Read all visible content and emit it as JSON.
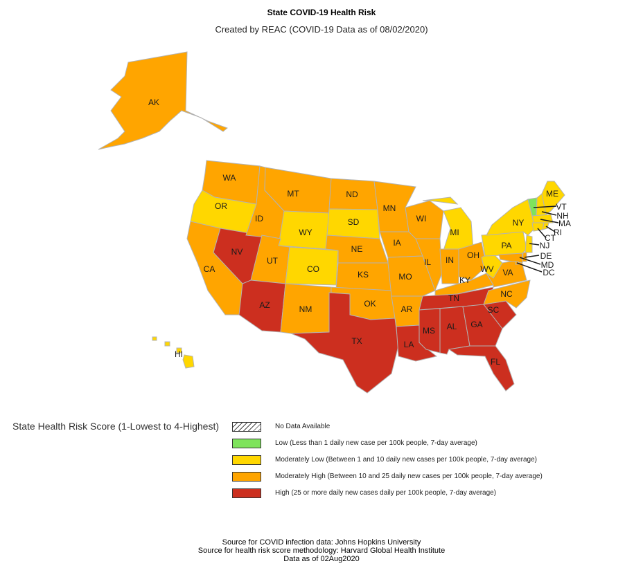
{
  "title": "State COVID-19 Health Risk",
  "subtitle": "Created by REAC (COVID-19 Data as of 08/02/2020)",
  "colors": {
    "low": "#7ee35c",
    "moderately_low": "#ffd700",
    "moderately_high": "#ffa500",
    "high": "#cc2f1f",
    "no_data": "hatched"
  },
  "legend": {
    "title": "State Health Risk Score (1-Lowest to 4-Highest)",
    "items": [
      {
        "label": "No Data Available",
        "color": "hatch"
      },
      {
        "label": "Low (Less than 1 daily new case per 100k people, 7-day average)",
        "color": "#7ee35c"
      },
      {
        "label": "Moderately Low (Between 1 and 10 daily new cases per 100k people, 7-day average)",
        "color": "#ffd700"
      },
      {
        "label": "Moderately High (Between 10 and 25 daily new cases per 100k people, 7-day average)",
        "color": "#ffa500"
      },
      {
        "label": "High (25 or more daily new cases daily per 100k people, 7-day average)",
        "color": "#cc2f1f"
      }
    ]
  },
  "states": {
    "AK": "moderately_high",
    "HI": "moderately_low",
    "WA": "moderately_high",
    "OR": "moderately_low",
    "CA": "moderately_high",
    "NV": "high",
    "ID": "moderately_high",
    "MT": "moderately_high",
    "WY": "moderately_low",
    "UT": "moderately_high",
    "AZ": "high",
    "CO": "moderately_low",
    "NM": "moderately_high",
    "ND": "moderately_high",
    "SD": "moderately_low",
    "NE": "moderately_high",
    "KS": "moderately_high",
    "OK": "moderately_high",
    "TX": "high",
    "MN": "moderately_high",
    "IA": "moderately_high",
    "MO": "moderately_high",
    "AR": "moderately_high",
    "LA": "high",
    "WI": "moderately_high",
    "IL": "moderately_high",
    "MI": "moderately_low",
    "IN": "moderately_high",
    "OH": "moderately_high",
    "KY": "moderately_high",
    "TN": "high",
    "MS": "high",
    "AL": "high",
    "GA": "high",
    "FL": "high",
    "SC": "high",
    "NC": "moderately_high",
    "VA": "moderately_high",
    "WV": "moderately_low",
    "PA": "moderately_low",
    "NY": "moderately_low",
    "ME": "moderately_low",
    "VT": "low",
    "NH": "moderately_low",
    "MA": "moderately_low",
    "RI": "moderately_low",
    "CT": "moderately_low",
    "NJ": "moderately_low",
    "DE": "moderately_high",
    "MD": "moderately_high",
    "DC": "moderately_high"
  },
  "footer": {
    "line1": "Source for COVID infection data: Johns Hopkins University",
    "line2": "Source for health risk score methodology: Harvard Global Health Institute",
    "line3": "Data as of 02Aug2020"
  }
}
